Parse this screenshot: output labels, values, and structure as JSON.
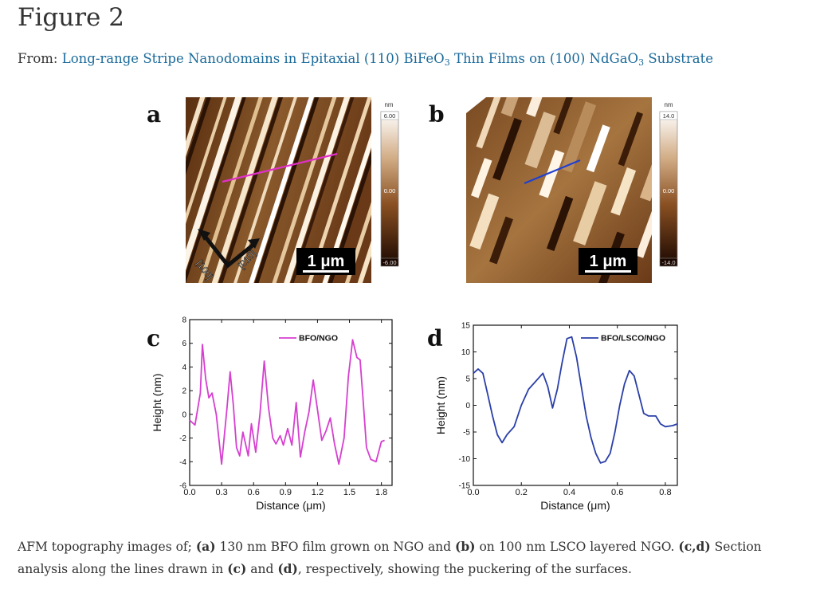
{
  "page": {
    "title": "Figure 2",
    "from_label": "From:",
    "article_link_parts": [
      "Long-range Stripe Nanodomains in Epitaxial (110) BiFeO",
      "3",
      " Thin Films on (100) NdGaO",
      "3",
      " Substrate"
    ]
  },
  "panels": {
    "a": {
      "letter": "a",
      "scalebar": "1 μm",
      "colorbar_unit": "nm",
      "colorbar_max": "6.00",
      "colorbar_mid": "0.00",
      "colorbar_min": "-6.00",
      "axis_left": "[100]",
      "axis_right": "[010]",
      "line_color": "#e030c8"
    },
    "b": {
      "letter": "b",
      "scalebar": "1 μm",
      "colorbar_unit": "nm",
      "colorbar_max": "14.0",
      "colorbar_mid": "0.00",
      "colorbar_min": "-14.0",
      "line_color": "#2040d0"
    },
    "c": {
      "letter": "c"
    },
    "d": {
      "letter": "d"
    }
  },
  "chart_data": [
    {
      "type": "line",
      "panel": "c",
      "xlabel": "Distance (μm)",
      "ylabel": "Height (nm)",
      "xlim": [
        0,
        1.9
      ],
      "ylim": [
        -6,
        8
      ],
      "xticks": [
        "0.0",
        "0.3",
        "0.6",
        "0.9",
        "1.2",
        "1.5",
        "1.8"
      ],
      "yticks": [
        "-6",
        "-4",
        "-2",
        "0",
        "2",
        "4",
        "6",
        "8"
      ],
      "color": "#d63fd0",
      "series": [
        {
          "name": "BFO/NGO",
          "x": [
            0.0,
            0.05,
            0.1,
            0.12,
            0.15,
            0.18,
            0.21,
            0.25,
            0.3,
            0.35,
            0.38,
            0.41,
            0.44,
            0.47,
            0.5,
            0.55,
            0.58,
            0.62,
            0.66,
            0.7,
            0.74,
            0.78,
            0.81,
            0.85,
            0.88,
            0.92,
            0.96,
            1.0,
            1.04,
            1.08,
            1.12,
            1.16,
            1.2,
            1.24,
            1.28,
            1.32,
            1.36,
            1.4,
            1.45,
            1.49,
            1.53,
            1.57,
            1.6,
            1.63,
            1.66,
            1.7,
            1.75,
            1.8,
            1.83
          ],
          "y": [
            -0.5,
            -0.9,
            1.8,
            5.9,
            3.0,
            1.4,
            1.8,
            0.0,
            -4.2,
            0.5,
            3.6,
            0.8,
            -2.8,
            -3.5,
            -1.5,
            -3.5,
            -0.8,
            -3.2,
            0.0,
            4.5,
            0.6,
            -2.0,
            -2.5,
            -1.8,
            -2.6,
            -1.2,
            -2.6,
            1.0,
            -3.6,
            -1.5,
            0.2,
            2.9,
            0.4,
            -2.2,
            -1.4,
            -0.3,
            -2.5,
            -4.2,
            -2.0,
            3.2,
            6.3,
            4.8,
            4.6,
            1.0,
            -2.8,
            -3.8,
            -4.0,
            -2.3,
            -2.2
          ]
        }
      ]
    },
    {
      "type": "line",
      "panel": "d",
      "xlabel": "Distance (μm)",
      "ylabel": "Height (nm)",
      "xlim": [
        0,
        0.85
      ],
      "ylim": [
        -15,
        15
      ],
      "xticks": [
        "0.0",
        "0.2",
        "0.4",
        "0.6",
        "0.8"
      ],
      "yticks": [
        "-15",
        "-10",
        "-5",
        "0",
        "5",
        "10",
        "15"
      ],
      "color": "#2a3fa8",
      "series": [
        {
          "name": "BFO/LSCO/NGO",
          "x": [
            0.0,
            0.02,
            0.04,
            0.06,
            0.08,
            0.1,
            0.12,
            0.14,
            0.17,
            0.2,
            0.23,
            0.26,
            0.29,
            0.31,
            0.33,
            0.35,
            0.37,
            0.39,
            0.41,
            0.43,
            0.45,
            0.47,
            0.49,
            0.51,
            0.53,
            0.55,
            0.57,
            0.59,
            0.61,
            0.63,
            0.65,
            0.67,
            0.69,
            0.71,
            0.73,
            0.76,
            0.78,
            0.8,
            0.83,
            0.85
          ],
          "y": [
            6.0,
            6.8,
            6.0,
            2.0,
            -2.0,
            -5.5,
            -7.0,
            -5.5,
            -4.0,
            0.0,
            3.0,
            4.5,
            6.0,
            3.5,
            -0.5,
            3.0,
            8.0,
            12.5,
            12.8,
            9.0,
            3.5,
            -2.0,
            -6.0,
            -9.0,
            -10.8,
            -10.5,
            -9.0,
            -5.0,
            0.0,
            4.0,
            6.5,
            5.5,
            2.0,
            -1.5,
            -2.0,
            -2.0,
            -3.5,
            -4.0,
            -3.8,
            -3.5
          ]
        }
      ]
    }
  ],
  "caption_parts": [
    "AFM topography images of; ",
    "(a)",
    " 130 nm BFO film grown on NGO and ",
    "(b)",
    " on 100 nm LSCO layered NGO. ",
    "(c,d)",
    " Section analysis along the lines drawn in ",
    "(c)",
    " and ",
    "(d)",
    ", respectively, showing the puckering of the surfaces."
  ]
}
